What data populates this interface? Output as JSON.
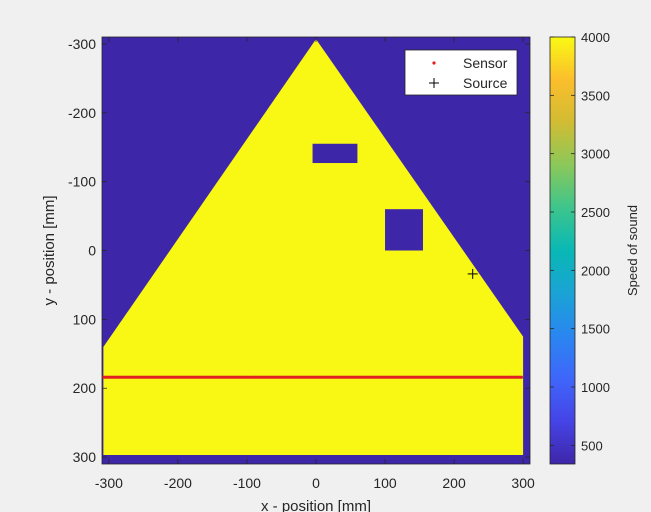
{
  "chart_data": {
    "type": "heatmap",
    "title": "",
    "xlabel": "x - position [mm]",
    "ylabel": "y - position [mm]",
    "xlim": [
      -310,
      310
    ],
    "ylim": [
      -310,
      310
    ],
    "y_direction": "reversed",
    "xticks": [
      -300,
      -200,
      -100,
      0,
      100,
      200,
      300
    ],
    "yticks": [
      -300,
      -200,
      -100,
      0,
      100,
      200,
      300
    ],
    "xtick_labels": [
      "-300",
      "-200",
      "-100",
      "0",
      "100",
      "200",
      "300"
    ],
    "ytick_labels": [
      "-300",
      "-200",
      "-100",
      "0",
      "100",
      "200",
      "300"
    ],
    "background": {
      "value": 340,
      "color": "#3e26a8"
    },
    "domain": {
      "shape": "polygon",
      "value": 4000,
      "color": "#f8f814",
      "vertices_mm": [
        [
          0,
          -307
        ],
        [
          -308,
          140
        ],
        [
          -308,
          297
        ],
        [
          300,
          297
        ],
        [
          300,
          125
        ]
      ]
    },
    "inclusions": [
      {
        "shape": "rect",
        "x_range_mm": [
          -5,
          60
        ],
        "y_range_mm": [
          -155,
          -127
        ],
        "value": 340
      },
      {
        "shape": "rect",
        "x_range_mm": [
          100,
          155
        ],
        "y_range_mm": [
          -60,
          0
        ],
        "value": 340
      }
    ],
    "series": [
      {
        "name": "Sensor",
        "type": "line-of-points",
        "x_range_mm": [
          -308,
          300
        ],
        "y_mm": 184,
        "color": "#e02020"
      },
      {
        "name": "Source",
        "type": "point",
        "x": 227,
        "y": 34,
        "marker": "+",
        "color": "#000000"
      }
    ],
    "legend": {
      "placement": "top-right",
      "entries": [
        "Sensor",
        "Source"
      ]
    },
    "colorbar": {
      "label": "Speed of sound",
      "range": [
        340,
        4000
      ],
      "ticks": [
        500,
        1000,
        1500,
        2000,
        2500,
        3000,
        3500,
        4000
      ],
      "tick_labels": [
        "500",
        "1000",
        "1500",
        "2000",
        "2500",
        "3000",
        "3500",
        "4000"
      ],
      "colormap": "parula"
    }
  }
}
